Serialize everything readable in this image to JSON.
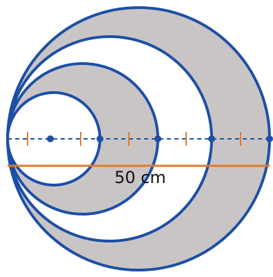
{
  "diagram": {
    "measurement_label": "50 cm",
    "colors": {
      "circle_stroke": "#1d4fa6",
      "shaded_fill": "#c9c5c5",
      "white_fill": "#ffffff",
      "tick_color": "#e07a2d",
      "dot_color": "#1d4fa6",
      "measure_line": "#e07a2d",
      "dashed_line": "#1d4fa6"
    },
    "circles": [
      {
        "name": "outer-circle",
        "fill": "shaded"
      },
      {
        "name": "third-circle",
        "fill": "white"
      },
      {
        "name": "second-circle",
        "fill": "shaded"
      },
      {
        "name": "inner-circle",
        "fill": "white"
      }
    ]
  }
}
